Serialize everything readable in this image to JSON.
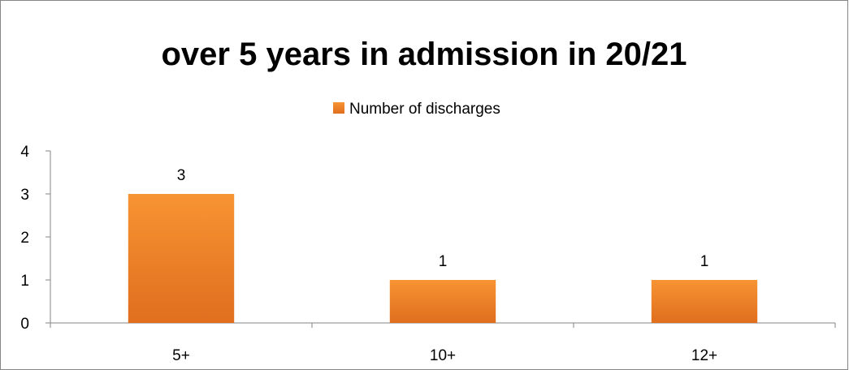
{
  "chart_data": {
    "type": "bar",
    "title": "over 5 years in admission in 20/21",
    "categories": [
      "5+",
      "10+",
      "12+"
    ],
    "series": [
      {
        "name": "Number of discharges",
        "values": [
          3,
          1,
          1
        ],
        "color": "#F79433",
        "color_dark": "#E06E1E"
      }
    ],
    "data_labels": [
      "3",
      "1",
      "1"
    ],
    "ylim": [
      0,
      4
    ],
    "y_ticks": [
      "0",
      "1",
      "2",
      "3",
      "4"
    ],
    "xlabel": "",
    "ylabel": "",
    "grid": false,
    "legend_position": "top"
  }
}
